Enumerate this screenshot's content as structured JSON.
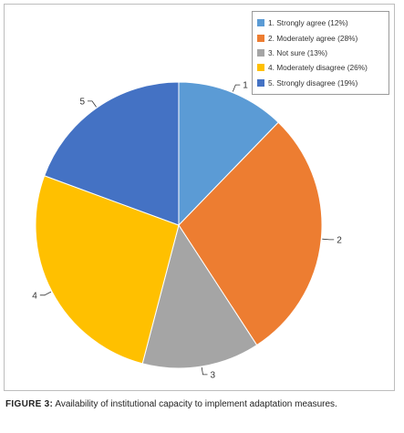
{
  "chart_data": {
    "type": "pie",
    "slices": [
      {
        "id": "1",
        "label": "1. Strongly agree (12%)",
        "value": 12,
        "color": "#5B9BD5"
      },
      {
        "id": "2",
        "label": "2. Moderately agree (28%)",
        "value": 28,
        "color": "#ED7D31"
      },
      {
        "id": "3",
        "label": "3. Not sure (13%)",
        "value": 13,
        "color": "#A5A5A5"
      },
      {
        "id": "4",
        "label": "4. Moderately disagree (26%)",
        "value": 26,
        "color": "#FFC000"
      },
      {
        "id": "5",
        "label": "5. Strongly disagree (19%)",
        "value": 19,
        "color": "#4472C4"
      }
    ],
    "start": "12 o'clock",
    "direction": "clockwise",
    "legend_position": "top-right"
  },
  "caption": {
    "label": "FIGURE 3:",
    "text": "Availability of institutional capacity to implement adaptation measures."
  }
}
